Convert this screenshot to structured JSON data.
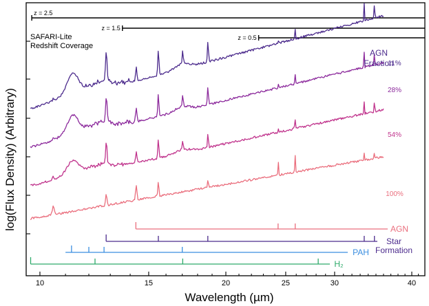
{
  "chart_data": {
    "type": "line",
    "xscale": "log",
    "xlim": [
      9.5,
      42
    ],
    "xlabel": "Wavelength (µm)",
    "ylabel": "log(Flux Density) (Arbitrary)",
    "x_ticks": [
      10,
      15,
      20,
      25,
      30,
      40
    ],
    "note": [
      "SAFARI-Lite",
      "Redshift Coverage"
    ],
    "redshift_coverage": [
      {
        "label": "z = 2.5",
        "start": 9.7,
        "end": 42
      },
      {
        "label": "z = 1.5",
        "start": 13.6,
        "end": 42
      },
      {
        "label": "z = 0.5",
        "start": 22.6,
        "end": 42
      }
    ],
    "legend_title": [
      "AGN",
      "Fraction"
    ],
    "series": [
      {
        "name": "11%",
        "color": "#4b2a8c",
        "offset": 3.0,
        "slope": 1.65,
        "pah_scale": 0.9,
        "agn_scale": 0.55
      },
      {
        "name": "28%",
        "color": "#8c2a9c",
        "offset": 2.0,
        "slope": 1.5,
        "pah_scale": 0.8,
        "agn_scale": 0.65
      },
      {
        "name": "54%",
        "color": "#c0338c",
        "offset": 1.0,
        "slope": 1.35,
        "pah_scale": 0.6,
        "agn_scale": 0.8
      },
      {
        "name": "100%",
        "color": "#ea6e7d",
        "offset": 0.0,
        "slope": 1.1,
        "pah_scale": 0.0,
        "agn_scale": 1.0
      }
    ],
    "feature_groups": [
      {
        "name": "AGN",
        "label_lines": [
          "AGN"
        ],
        "color": "#ea6e7d",
        "lines": [
          14.3,
          24.3,
          25.9
        ],
        "range": [
          14.3,
          36
        ]
      },
      {
        "name": "Star Formation",
        "label_lines": [
          "Star",
          "Formation"
        ],
        "color": "#4b2a8c",
        "lines": [
          12.8,
          15.55,
          18.7,
          33.5,
          34.8
        ],
        "range": [
          12.8,
          35
        ]
      },
      {
        "name": "PAH",
        "label_lines": [
          "PAH"
        ],
        "color": "#3a8ee0",
        "lines": [
          11.25,
          12.0,
          12.7,
          17.0
        ],
        "range": [
          11.0,
          33.0
        ]
      },
      {
        "name": "H2",
        "label_lines": [
          "H₂"
        ],
        "color": "#2eaa6a",
        "lines": [
          9.66,
          12.28,
          17.03,
          28.22
        ],
        "range": [
          9.66,
          28.5
        ]
      }
    ]
  }
}
